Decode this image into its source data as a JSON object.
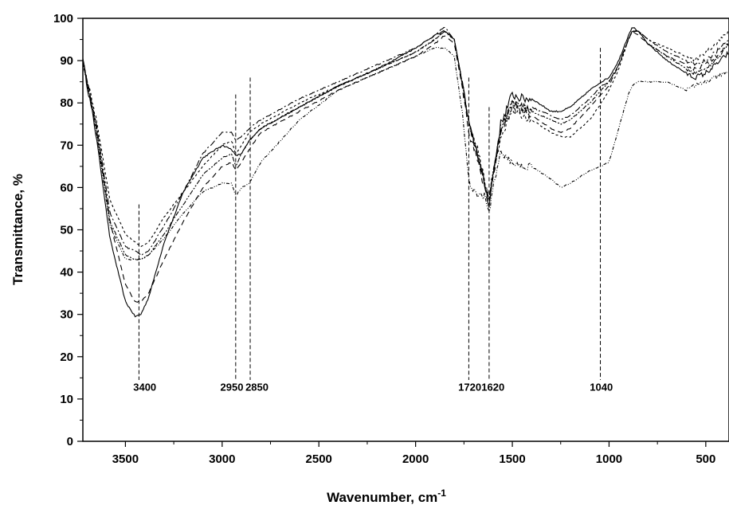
{
  "chart_data": {
    "type": "line",
    "xlabel": "Wavenumber, cm",
    "xlabel_sup": "-1",
    "ylabel": "Transmittance, %",
    "xlim": [
      3720,
      380
    ],
    "ylim": [
      0,
      100
    ],
    "x_reversed": true,
    "xticks": [
      3500,
      3000,
      2500,
      2000,
      1500,
      1000,
      500
    ],
    "xtick_labels": [
      "3500",
      "3000",
      "2500",
      "2000",
      "1500",
      "1000",
      "500"
    ],
    "yticks": [
      0,
      10,
      20,
      30,
      40,
      50,
      60,
      70,
      80,
      90,
      100
    ],
    "ytick_labels": [
      "0",
      "10",
      "20",
      "30",
      "40",
      "50",
      "60",
      "70",
      "80",
      "90",
      "100"
    ],
    "grid": false,
    "line_color": "#000000",
    "annotations": [
      {
        "x": 3430,
        "label": "3400",
        "y_top": 56,
        "label_x": 3400,
        "label_y": 12
      },
      {
        "x": 2930,
        "label": "2950",
        "y_top": 82,
        "label_x": 2950,
        "label_y": 12
      },
      {
        "x": 2855,
        "label": "2850",
        "y_top": 86,
        "label_x": 2820,
        "label_y": 12
      },
      {
        "x": 1725,
        "label": "1720",
        "y_top": 86,
        "label_x": 1720,
        "label_y": 12
      },
      {
        "x": 1620,
        "label": "1620",
        "y_top": 79,
        "label_x": 1600,
        "label_y": 12
      },
      {
        "x": 1045,
        "label": "1040",
        "y_top": 93,
        "label_x": 1040,
        "label_y": 12
      }
    ],
    "series": [
      {
        "dash": "none",
        "noise": 1.0,
        "x": [
          3720,
          3650,
          3580,
          3500,
          3450,
          3420,
          3380,
          3300,
          3200,
          3100,
          3000,
          2950,
          2930,
          2900,
          2860,
          2800,
          2600,
          2400,
          2350,
          2200,
          2000,
          1900,
          1850,
          1800,
          1760,
          1720,
          1680,
          1640,
          1620,
          1600,
          1560,
          1500,
          1450,
          1400,
          1300,
          1250,
          1200,
          1100,
          1040,
          1000,
          950,
          900,
          880,
          850,
          800,
          700,
          600,
          560,
          500,
          450,
          400,
          380
        ],
        "y": [
          90,
          72,
          48,
          33,
          29.5,
          30,
          34,
          47,
          59,
          67,
          70,
          69,
          67.5,
          68,
          71,
          74,
          79,
          84,
          85,
          88,
          93,
          96,
          97,
          95,
          85,
          74,
          68,
          60,
          56,
          63,
          75,
          82,
          81,
          81,
          78,
          78,
          79,
          83,
          85,
          86,
          90,
          96,
          98,
          97,
          94,
          90,
          87,
          86,
          87,
          89,
          91,
          92
        ]
      },
      {
        "dash": "7,5",
        "noise": 0.8,
        "x": [
          3720,
          3650,
          3580,
          3500,
          3450,
          3420,
          3380,
          3300,
          3200,
          3100,
          3000,
          2950,
          2930,
          2900,
          2860,
          2800,
          2600,
          2400,
          2350,
          2200,
          2000,
          1900,
          1850,
          1800,
          1760,
          1720,
          1680,
          1640,
          1620,
          1600,
          1560,
          1500,
          1450,
          1400,
          1300,
          1250,
          1200,
          1100,
          1040,
          1000,
          950,
          900,
          880,
          850,
          800,
          700,
          600,
          560,
          500,
          450,
          400,
          380
        ],
        "y": [
          90,
          74,
          52,
          37,
          33,
          33,
          35,
          43,
          52,
          60,
          65,
          66,
          64,
          66,
          69,
          73,
          78,
          83,
          84,
          87,
          91,
          94,
          96,
          94,
          84,
          72,
          67,
          59,
          56,
          62,
          73,
          79,
          78,
          77,
          74,
          73,
          74,
          79,
          82,
          84,
          89,
          95,
          97,
          96,
          94,
          91,
          89,
          88,
          89,
          91,
          93,
          94
        ]
      },
      {
        "dash": "3,3",
        "noise": 0.8,
        "x": [
          3720,
          3650,
          3580,
          3500,
          3450,
          3420,
          3380,
          3300,
          3200,
          3100,
          3000,
          2950,
          2930,
          2900,
          2860,
          2800,
          2600,
          2400,
          2350,
          2200,
          2000,
          1900,
          1850,
          1800,
          1760,
          1720,
          1680,
          1640,
          1620,
          1600,
          1560,
          1500,
          1450,
          1400,
          1300,
          1250,
          1200,
          1100,
          1040,
          1000,
          950,
          900,
          880,
          850,
          800,
          700,
          600,
          560,
          500,
          450,
          400,
          380
        ],
        "y": [
          90,
          76,
          57,
          49,
          47,
          46,
          47,
          53,
          59,
          65,
          70,
          71,
          68,
          70,
          73,
          75,
          80,
          84,
          85,
          88,
          92,
          95,
          97,
          95,
          85,
          74,
          69,
          61,
          58,
          63,
          72,
          78,
          77,
          76,
          73,
          72,
          72,
          76,
          80,
          83,
          88,
          95,
          97,
          97,
          95,
          93,
          91,
          90,
          92,
          94,
          96,
          97
        ]
      },
      {
        "dash": "8,3,2,3",
        "noise": 0.8,
        "x": [
          3720,
          3650,
          3580,
          3500,
          3450,
          3420,
          3380,
          3300,
          3200,
          3100,
          3000,
          2950,
          2930,
          2900,
          2860,
          2800,
          2600,
          2400,
          2350,
          2200,
          2000,
          1900,
          1850,
          1800,
          1760,
          1720,
          1680,
          1640,
          1620,
          1600,
          1560,
          1500,
          1450,
          1400,
          1300,
          1250,
          1200,
          1100,
          1040,
          1000,
          950,
          900,
          880,
          850,
          800,
          700,
          600,
          560,
          500,
          450,
          400,
          380
        ],
        "y": [
          90,
          75,
          54,
          46,
          45,
          44,
          45,
          51,
          59,
          68,
          73,
          73,
          71,
          72,
          74,
          76,
          81,
          85,
          86,
          89,
          93,
          96,
          98,
          95,
          85,
          74,
          68,
          60,
          57,
          63,
          74,
          80,
          79,
          79,
          77,
          76,
          77,
          81,
          84,
          85,
          89,
          95,
          97,
          97,
          95,
          92,
          90,
          89,
          90,
          92,
          94,
          95
        ]
      },
      {
        "dash": "2,2,2,2,6,2",
        "noise": 0.8,
        "x": [
          3720,
          3650,
          3580,
          3500,
          3450,
          3420,
          3380,
          3300,
          3200,
          3100,
          3000,
          2950,
          2930,
          2900,
          2860,
          2800,
          2600,
          2400,
          2350,
          2200,
          2000,
          1900,
          1850,
          1800,
          1760,
          1720,
          1680,
          1640,
          1620,
          1600,
          1560,
          1500,
          1450,
          1400,
          1300,
          1250,
          1200,
          1100,
          1040,
          1000,
          950,
          900,
          880,
          850,
          800,
          700,
          600,
          560,
          500,
          450,
          400,
          380
        ],
        "y": [
          90,
          74,
          52,
          44,
          43,
          43,
          44,
          49,
          56,
          63,
          67,
          68,
          65,
          68,
          71,
          74,
          79,
          84,
          85,
          88,
          92,
          95,
          97,
          95,
          85,
          74,
          68,
          60,
          57,
          63,
          74,
          80,
          79,
          78,
          76,
          75,
          76,
          80,
          83,
          85,
          89,
          95,
          97,
          97,
          94,
          91,
          88,
          87,
          88,
          90,
          93,
          94
        ]
      },
      {
        "dash": "1,2,1,2,4,2",
        "noise": 0.8,
        "x": [
          3720,
          3650,
          3580,
          3500,
          3450,
          3420,
          3380,
          3300,
          3200,
          3100,
          3000,
          2950,
          2930,
          2900,
          2860,
          2800,
          2600,
          2400,
          2350,
          2200,
          2000,
          1900,
          1850,
          1800,
          1760,
          1720,
          1680,
          1640,
          1620,
          1600,
          1560,
          1500,
          1450,
          1400,
          1300,
          1250,
          1200,
          1100,
          1040,
          1000,
          950,
          900,
          880,
          850,
          800,
          700,
          600,
          560,
          500,
          450,
          400,
          380
        ],
        "y": [
          90,
          73,
          51,
          43,
          43,
          43,
          44,
          48,
          54,
          59,
          61,
          61,
          58,
          60,
          61,
          66,
          76,
          83,
          84,
          87,
          91,
          93,
          93,
          91,
          78,
          60,
          58,
          58,
          54,
          60,
          68,
          66,
          65,
          65,
          62,
          60,
          61,
          64,
          65,
          66,
          74,
          82,
          84,
          85,
          85,
          85,
          83,
          84,
          85,
          86,
          87,
          87
        ]
      }
    ]
  }
}
